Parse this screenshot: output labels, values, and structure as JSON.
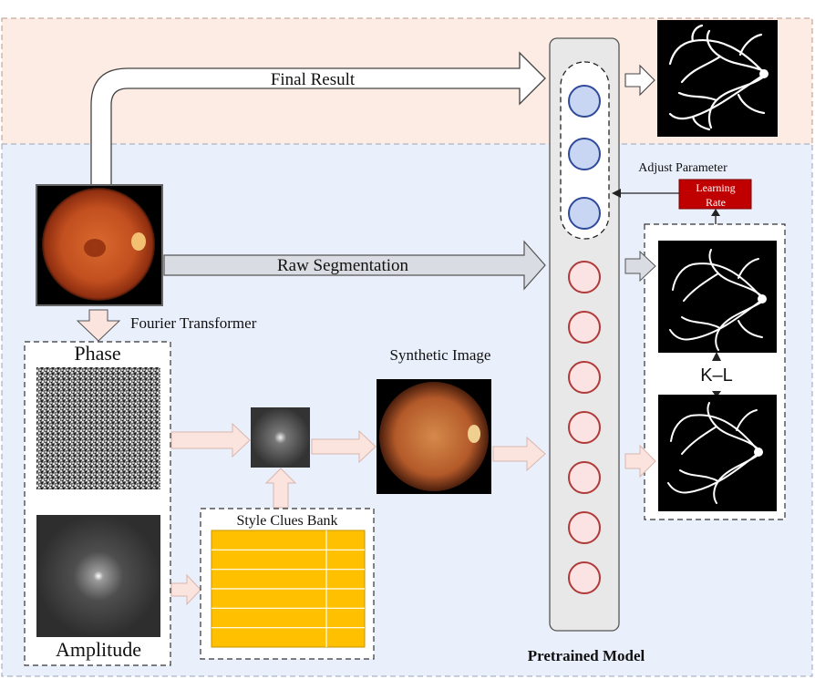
{
  "labels": {
    "final_result": "Final Result",
    "raw_segmentation": "Raw Segmentation",
    "fourier_transformer": "Fourier Transformer",
    "phase": "Phase",
    "amplitude": "Amplitude",
    "synthetic_image": "Synthetic Image",
    "style_clues_bank": "Style Clues Bank",
    "adjust_parameter": "Adjust Parameter",
    "learning_rate_line1": "Learning",
    "learning_rate_line2": "Rate",
    "kl": "K–L",
    "pretrained_model": "Pretrained Model"
  },
  "colors": {
    "top_region_fill": "#fdece3",
    "bottom_region_fill": "#e9effb",
    "blue_node": "#c9d6f3",
    "blue_node_stroke": "#2f4a9a",
    "red_node": "#fbe3e3",
    "red_node_stroke": "#b03a3a",
    "style_bank_fill": "#ffc000",
    "learning_rate_fill": "#c00000",
    "pink_arrow": "#fbe4de"
  },
  "model": {
    "blue_nodes": 3,
    "red_nodes": 7
  },
  "style_bank": {
    "rows": 6
  }
}
